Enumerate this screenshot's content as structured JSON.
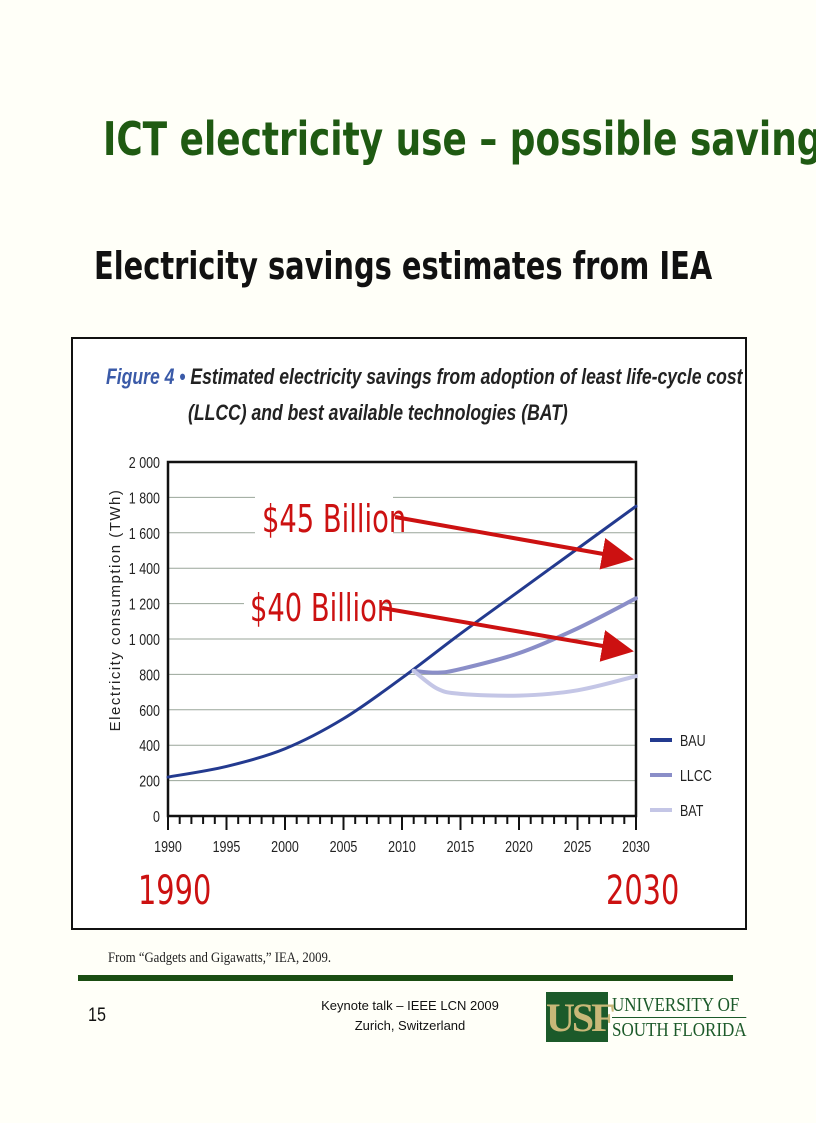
{
  "slide": {
    "title": "ICT electricity use – possible savings",
    "subtitle": "Electricity savings estimates from IEA",
    "source": "From “Gadgets and Gigawatts,” IEA, 2009.",
    "page_number": "15",
    "footer_line1": "Keynote talk – IEEE LCN 2009",
    "footer_line2": "Zurich, Switzerland",
    "logo": {
      "mark": "USF",
      "line1": "UNIVERSITY OF",
      "line2": "SOUTH FLORIDA"
    },
    "colors": {
      "title": "#1f5a12",
      "annotation": "#cc1111",
      "rule": "#1a4d12"
    }
  },
  "chart_data": {
    "type": "line",
    "figure_label": "Figure 4 •",
    "title_line1": "Estimated electricity savings from adoption of least life-cycle cost",
    "title_line2": "(LLCC) and best available technologies (BAT)",
    "xlabel": "",
    "ylabel": "Electricity consumption (TWh)",
    "xlim": [
      1990,
      2030
    ],
    "ylim": [
      0,
      2000
    ],
    "xticks": [
      "1990",
      "1995",
      "2000",
      "2005",
      "2010",
      "2015",
      "2020",
      "2025",
      "2030"
    ],
    "yticks": [
      "0",
      "200",
      "400",
      "600",
      "800",
      "1 000",
      "1 200",
      "1 400",
      "1 600",
      "1 800",
      "2 000"
    ],
    "grid": true,
    "legend_position": "right",
    "series": [
      {
        "name": "BAU",
        "color": "#233a8f",
        "x": [
          1990,
          1995,
          2000,
          2005,
          2010,
          2015,
          2020,
          2025,
          2030
        ],
        "values": [
          220,
          280,
          380,
          550,
          780,
          1030,
          1270,
          1510,
          1750
        ]
      },
      {
        "name": "LLCC",
        "color": "#8a8ec8",
        "x": [
          2011,
          2013,
          2015,
          2020,
          2025,
          2030
        ],
        "values": [
          820,
          810,
          830,
          920,
          1060,
          1230
        ]
      },
      {
        "name": "BAT",
        "color": "#c4c6e6",
        "x": [
          2011,
          2013,
          2015,
          2020,
          2025,
          2030
        ],
        "values": [
          820,
          720,
          690,
          680,
          710,
          790
        ]
      }
    ],
    "annotations": [
      {
        "text": "$45 Billion",
        "points_to_year": 2030,
        "points_to_value": 1450
      },
      {
        "text": "$40 Billion",
        "points_to_year": 2030,
        "points_to_value": 940
      },
      {
        "text": "1990"
      },
      {
        "text": "2030"
      }
    ]
  }
}
